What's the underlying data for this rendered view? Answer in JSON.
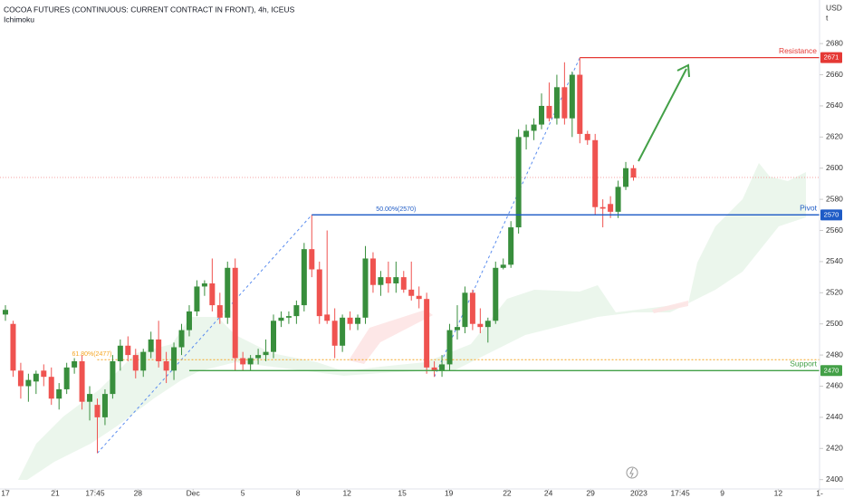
{
  "chart_data": {
    "type": "candlestick",
    "title": "COCOA FUTURES (CONTINUOUS: CURRENT CONTRACT IN FRONT), 4h, ICEUS",
    "subtitle": "Ichimoku",
    "currency": "USD",
    "unit": "t",
    "open": [
      2506,
      2500,
      2470,
      2460,
      2463,
      2470,
      2466,
      2452,
      2458,
      2472,
      2476,
      2450,
      2448,
      2440,
      2455,
      2476,
      2486,
      2480,
      2470,
      2482,
      2490,
      2476,
      2470,
      2485,
      2496,
      2508,
      2524,
      2526,
      2512,
      2504,
      2536,
      2478,
      2474,
      2478,
      2480,
      2482,
      2502,
      2504,
      2505,
      2512,
      2548,
      2535,
      2506,
      2502,
      2486,
      2504,
      2500,
      2504,
      2542,
      2525,
      2530,
      2526,
      2530,
      2522,
      2518,
      2516,
      2472,
      2470,
      2474,
      2496,
      2498,
      2520,
      2500,
      2498,
      2502,
      2536,
      2538,
      2562,
      2620,
      2624,
      2628,
      2640,
      2632,
      2652,
      2632,
      2660,
      2622,
      2618,
      2575,
      2577,
      2572,
      2588,
      2600
    ],
    "high": [
      2512,
      2502,
      2475,
      2468,
      2470,
      2474,
      2472,
      2462,
      2475,
      2478,
      2480,
      2460,
      2452,
      2458,
      2480,
      2490,
      2492,
      2484,
      2484,
      2495,
      2502,
      2482,
      2488,
      2500,
      2512,
      2528,
      2528,
      2542,
      2520,
      2540,
      2542,
      2482,
      2480,
      2484,
      2490,
      2506,
      2508,
      2508,
      2515,
      2552,
      2570,
      2540,
      2560,
      2510,
      2506,
      2508,
      2506,
      2550,
      2546,
      2534,
      2540,
      2540,
      2534,
      2540,
      2524,
      2520,
      2476,
      2480,
      2500,
      2512,
      2524,
      2522,
      2510,
      2504,
      2540,
      2542,
      2566,
      2625,
      2628,
      2632,
      2648,
      2655,
      2660,
      2668,
      2662,
      2671,
      2624,
      2622,
      2580,
      2582,
      2592,
      2604,
      2602
    ],
    "low": [
      2502,
      2466,
      2452,
      2450,
      2455,
      2460,
      2448,
      2445,
      2455,
      2468,
      2445,
      2438,
      2417,
      2435,
      2452,
      2470,
      2476,
      2465,
      2466,
      2478,
      2472,
      2462,
      2464,
      2480,
      2492,
      2505,
      2518,
      2508,
      2500,
      2500,
      2470,
      2470,
      2470,
      2474,
      2476,
      2478,
      2498,
      2500,
      2500,
      2508,
      2530,
      2500,
      2500,
      2478,
      2482,
      2496,
      2496,
      2500,
      2520,
      2518,
      2520,
      2520,
      2520,
      2515,
      2510,
      2468,
      2466,
      2466,
      2470,
      2490,
      2494,
      2496,
      2494,
      2488,
      2500,
      2535,
      2536,
      2558,
      2612,
      2618,
      2625,
      2630,
      2628,
      2628,
      2620,
      2616,
      2615,
      2570,
      2562,
      2568,
      2568,
      2586,
      2592
    ],
    "close": [
      2509,
      2470,
      2460,
      2464,
      2468,
      2466,
      2452,
      2458,
      2472,
      2476,
      2450,
      2455,
      2440,
      2455,
      2476,
      2486,
      2480,
      2470,
      2482,
      2490,
      2476,
      2470,
      2485,
      2496,
      2508,
      2524,
      2526,
      2512,
      2504,
      2536,
      2478,
      2474,
      2478,
      2480,
      2482,
      2502,
      2504,
      2505,
      2512,
      2548,
      2535,
      2505,
      2502,
      2486,
      2504,
      2500,
      2504,
      2542,
      2525,
      2530,
      2526,
      2530,
      2522,
      2518,
      2516,
      2472,
      2470,
      2474,
      2496,
      2498,
      2520,
      2500,
      2498,
      2502,
      2536,
      2538,
      2562,
      2620,
      2624,
      2628,
      2640,
      2632,
      2652,
      2632,
      2660,
      2622,
      2618,
      2575,
      2574,
      2572,
      2588,
      2600,
      2594
    ],
    "up_color": "#388e3c",
    "down_color": "#ef5350",
    "ylim": [
      2394,
      2708
    ],
    "yticks": [
      2400,
      2420,
      2440,
      2460,
      2480,
      2500,
      2520,
      2540,
      2560,
      2580,
      2600,
      2620,
      2640,
      2660,
      2680
    ],
    "xlim": [
      -0.71,
      106.3
    ],
    "xticks": [
      {
        "value": 0,
        "label": "17"
      },
      {
        "value": 6.5,
        "label": "21"
      },
      {
        "value": 11.7,
        "label": "17:45"
      },
      {
        "value": 17.3,
        "label": "28"
      },
      {
        "value": 24.5,
        "label": "Dec"
      },
      {
        "value": 31,
        "label": "5"
      },
      {
        "value": 38.2,
        "label": "8"
      },
      {
        "value": 44.6,
        "label": "12"
      },
      {
        "value": 51.8,
        "label": "15"
      },
      {
        "value": 57.9,
        "label": "19"
      },
      {
        "value": 65.5,
        "label": "22"
      },
      {
        "value": 70.9,
        "label": "24"
      },
      {
        "value": 76.4,
        "label": "29"
      },
      {
        "value": 82.7,
        "label": "2023"
      },
      {
        "value": 88.1,
        "label": "17:45"
      },
      {
        "value": 93.6,
        "label": "9"
      },
      {
        "value": 100.9,
        "label": "12"
      },
      {
        "value": 106.3,
        "label": "1-"
      }
    ],
    "levels": [
      {
        "name": "Resistance",
        "value": 2671,
        "color": "#e53935"
      },
      {
        "name": "Pivot",
        "value": 2570,
        "color": "#1e5bc6"
      },
      {
        "name": "Support",
        "value": 2470,
        "color": "#43a047"
      }
    ],
    "fib_levels": [
      {
        "label": "50.00%(2570)",
        "value": 2570,
        "color": "#1e5bc6"
      },
      {
        "label": "61.80%(2477)",
        "value": 2477,
        "color": "#f5a623"
      }
    ]
  }
}
